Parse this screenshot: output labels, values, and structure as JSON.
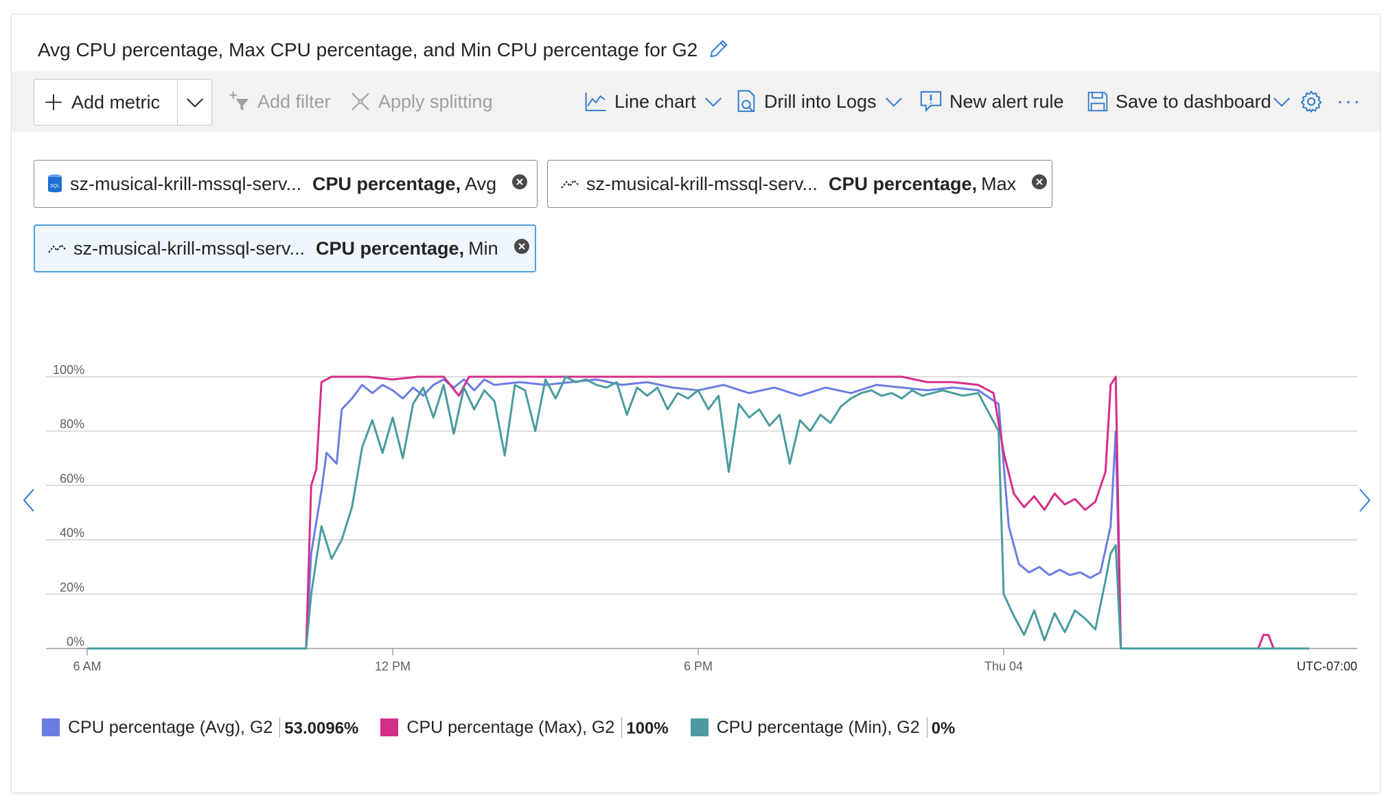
{
  "title": "Avg CPU percentage, Max CPU percentage, and Min CPU percentage for G2",
  "toolbar": {
    "add_metric": "Add metric",
    "add_filter": "Add filter",
    "apply_splitting": "Apply splitting",
    "line_chart": "Line chart",
    "drill_logs": "Drill into Logs",
    "new_alert": "New alert rule",
    "save_dashboard": "Save to dashboard",
    "more": "···"
  },
  "pills": [
    {
      "resource": "sz-musical-krill-mssql-serv...",
      "metric": "CPU percentage,",
      "agg": "Avg",
      "icon": "sql-database-icon"
    },
    {
      "resource": "sz-musical-krill-mssql-serv...",
      "metric": "CPU percentage,",
      "agg": "Max",
      "icon": "metric-line-icon"
    },
    {
      "resource": "sz-musical-krill-mssql-serv...",
      "metric": "CPU percentage,",
      "agg": "Min",
      "icon": "metric-line-icon"
    }
  ],
  "colors": {
    "avg": "#6b7de3",
    "max": "#d42e8b",
    "min": "#4a9b9e"
  },
  "chart_data": {
    "type": "line",
    "x_ticks": [
      "6 AM",
      "12 PM",
      "6 PM",
      "Thu 04"
    ],
    "y_ticks": [
      "100%",
      "80%",
      "60%",
      "40%",
      "20%",
      "0%"
    ],
    "timezone": "UTC-07:00",
    "ylim": [
      0,
      100
    ],
    "xlim": [
      0,
      24
    ],
    "series": [
      {
        "name": "CPU percentage (Avg), G2",
        "key": "avg",
        "values": [
          [
            0,
            0
          ],
          [
            4.3,
            0
          ],
          [
            4.4,
            35
          ],
          [
            4.6,
            58
          ],
          [
            4.7,
            72
          ],
          [
            4.9,
            68
          ],
          [
            5.0,
            88
          ],
          [
            5.2,
            92
          ],
          [
            5.4,
            97
          ],
          [
            5.6,
            94
          ],
          [
            5.8,
            97
          ],
          [
            6.0,
            95
          ],
          [
            6.2,
            92
          ],
          [
            6.4,
            96
          ],
          [
            6.6,
            93
          ],
          [
            6.8,
            97
          ],
          [
            7.0,
            99
          ],
          [
            7.2,
            96
          ],
          [
            7.4,
            99
          ],
          [
            7.6,
            95
          ],
          [
            7.8,
            99
          ],
          [
            8.0,
            97
          ],
          [
            8.5,
            98
          ],
          [
            9.0,
            97
          ],
          [
            9.5,
            98
          ],
          [
            10.0,
            99
          ],
          [
            10.5,
            97
          ],
          [
            11.0,
            98
          ],
          [
            11.5,
            96
          ],
          [
            12.0,
            95
          ],
          [
            12.5,
            97
          ],
          [
            13.0,
            94
          ],
          [
            13.5,
            96
          ],
          [
            14.0,
            93
          ],
          [
            14.5,
            96
          ],
          [
            15.0,
            94
          ],
          [
            15.5,
            97
          ],
          [
            16.0,
            96
          ],
          [
            16.5,
            95
          ],
          [
            17.0,
            96
          ],
          [
            17.5,
            95
          ],
          [
            17.9,
            90
          ],
          [
            18.1,
            45
          ],
          [
            18.3,
            31
          ],
          [
            18.5,
            28
          ],
          [
            18.7,
            30
          ],
          [
            18.9,
            27
          ],
          [
            19.1,
            29
          ],
          [
            19.3,
            27
          ],
          [
            19.5,
            28
          ],
          [
            19.7,
            26
          ],
          [
            19.9,
            28
          ],
          [
            20.1,
            45
          ],
          [
            20.2,
            80
          ],
          [
            20.3,
            0
          ],
          [
            24,
            0
          ]
        ]
      },
      {
        "name": "CPU percentage (Max), G2",
        "key": "max",
        "values": [
          [
            0,
            0
          ],
          [
            4.3,
            0
          ],
          [
            4.4,
            60
          ],
          [
            4.5,
            66
          ],
          [
            4.6,
            98
          ],
          [
            4.8,
            100
          ],
          [
            5.5,
            100
          ],
          [
            6.0,
            99
          ],
          [
            6.5,
            100
          ],
          [
            7.0,
            100
          ],
          [
            7.3,
            93
          ],
          [
            7.5,
            100
          ],
          [
            8.0,
            100
          ],
          [
            9.0,
            100
          ],
          [
            10.0,
            100
          ],
          [
            11.0,
            100
          ],
          [
            12.0,
            100
          ],
          [
            13.0,
            100
          ],
          [
            14.0,
            100
          ],
          [
            15.0,
            100
          ],
          [
            16.0,
            100
          ],
          [
            16.5,
            98
          ],
          [
            17.0,
            98
          ],
          [
            17.5,
            97
          ],
          [
            17.8,
            94
          ],
          [
            18.0,
            72
          ],
          [
            18.2,
            57
          ],
          [
            18.4,
            52
          ],
          [
            18.6,
            56
          ],
          [
            18.8,
            51
          ],
          [
            19.0,
            57
          ],
          [
            19.2,
            53
          ],
          [
            19.4,
            55
          ],
          [
            19.6,
            51
          ],
          [
            19.8,
            54
          ],
          [
            20.0,
            65
          ],
          [
            20.1,
            97
          ],
          [
            20.2,
            100
          ],
          [
            20.3,
            0
          ],
          [
            23.0,
            0
          ],
          [
            23.1,
            5
          ],
          [
            23.2,
            5
          ],
          [
            23.3,
            0
          ],
          [
            23.4,
            0
          ]
        ]
      },
      {
        "name": "CPU percentage (Min), G2",
        "key": "min",
        "values": [
          [
            0,
            0
          ],
          [
            4.3,
            0
          ],
          [
            4.4,
            20
          ],
          [
            4.6,
            45
          ],
          [
            4.8,
            33
          ],
          [
            5.0,
            40
          ],
          [
            5.2,
            52
          ],
          [
            5.4,
            74
          ],
          [
            5.6,
            84
          ],
          [
            5.8,
            72
          ],
          [
            6.0,
            85
          ],
          [
            6.2,
            70
          ],
          [
            6.4,
            90
          ],
          [
            6.6,
            96
          ],
          [
            6.8,
            85
          ],
          [
            7.0,
            97
          ],
          [
            7.2,
            79
          ],
          [
            7.4,
            96
          ],
          [
            7.6,
            88
          ],
          [
            7.8,
            95
          ],
          [
            8.0,
            91
          ],
          [
            8.2,
            71
          ],
          [
            8.4,
            97
          ],
          [
            8.6,
            95
          ],
          [
            8.8,
            80
          ],
          [
            9.0,
            99
          ],
          [
            9.2,
            92
          ],
          [
            9.4,
            100
          ],
          [
            9.6,
            98
          ],
          [
            9.8,
            99
          ],
          [
            10.0,
            97
          ],
          [
            10.2,
            96
          ],
          [
            10.4,
            98
          ],
          [
            10.6,
            86
          ],
          [
            10.8,
            96
          ],
          [
            11.0,
            93
          ],
          [
            11.2,
            96
          ],
          [
            11.4,
            88
          ],
          [
            11.6,
            94
          ],
          [
            11.8,
            92
          ],
          [
            12.0,
            95
          ],
          [
            12.2,
            88
          ],
          [
            12.4,
            93
          ],
          [
            12.6,
            65
          ],
          [
            12.8,
            90
          ],
          [
            13.0,
            85
          ],
          [
            13.2,
            88
          ],
          [
            13.4,
            82
          ],
          [
            13.6,
            86
          ],
          [
            13.8,
            68
          ],
          [
            14.0,
            84
          ],
          [
            14.2,
            80
          ],
          [
            14.4,
            86
          ],
          [
            14.6,
            83
          ],
          [
            14.8,
            89
          ],
          [
            15.0,
            92
          ],
          [
            15.2,
            94
          ],
          [
            15.4,
            95
          ],
          [
            15.6,
            93
          ],
          [
            15.8,
            94
          ],
          [
            16.0,
            92
          ],
          [
            16.2,
            95
          ],
          [
            16.4,
            93
          ],
          [
            16.6,
            94
          ],
          [
            16.8,
            95
          ],
          [
            17.0,
            94
          ],
          [
            17.2,
            93
          ],
          [
            17.5,
            94
          ],
          [
            17.9,
            80
          ],
          [
            18.0,
            20
          ],
          [
            18.2,
            12
          ],
          [
            18.4,
            5
          ],
          [
            18.6,
            14
          ],
          [
            18.8,
            3
          ],
          [
            19.0,
            13
          ],
          [
            19.2,
            6
          ],
          [
            19.4,
            14
          ],
          [
            19.6,
            11
          ],
          [
            19.8,
            7
          ],
          [
            20.0,
            25
          ],
          [
            20.1,
            35
          ],
          [
            20.2,
            38
          ],
          [
            20.3,
            0
          ],
          [
            24,
            0
          ]
        ]
      }
    ]
  },
  "legend": [
    {
      "label": "CPU percentage (Avg), G2",
      "value": "53.0096%",
      "key": "avg"
    },
    {
      "label": "CPU percentage (Max), G2",
      "value": "100%",
      "key": "max"
    },
    {
      "label": "CPU percentage (Min), G2",
      "value": "0%",
      "key": "min"
    }
  ]
}
